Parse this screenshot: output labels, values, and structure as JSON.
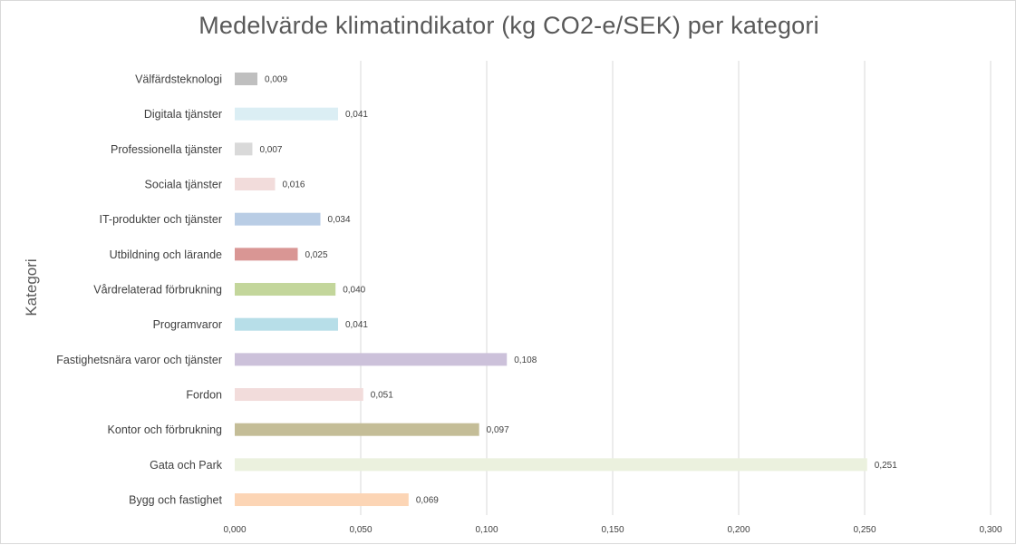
{
  "chart_data": {
    "type": "bar",
    "orientation": "horizontal",
    "title": "Medelvärde klimatindikator (kg CO2-e/SEK) per kategori",
    "ylabel": "Kategori",
    "xlabel": "",
    "xlim": [
      0,
      0.3
    ],
    "xticks": [
      0,
      0.05,
      0.1,
      0.15,
      0.2,
      0.25,
      0.3
    ],
    "xtick_labels": [
      "0,000",
      "0,050",
      "0,100",
      "0,150",
      "0,200",
      "0,250",
      "0,300"
    ],
    "grid": "vertical",
    "legend": "none",
    "categories": [
      "Välfärdsteknologi",
      "Digitala tjänster",
      "Professionella tjänster",
      "Sociala tjänster",
      "IT-produkter och tjänster",
      "Utbildning och lärande",
      "Vårdrelaterad förbrukning",
      "Programvaror",
      "Fastighetsnära varor och tjänster",
      "Fordon",
      "Kontor och förbrukning",
      "Gata och Park",
      "Bygg och fastighet"
    ],
    "values": [
      0.009,
      0.041,
      0.007,
      0.016,
      0.034,
      0.025,
      0.04,
      0.041,
      0.108,
      0.051,
      0.097,
      0.251,
      0.069
    ],
    "value_labels": [
      "0,009",
      "0,041",
      "0,007",
      "0,016",
      "0,034",
      "0,025",
      "0,040",
      "0,041",
      "0,108",
      "0,051",
      "0,097",
      "0,251",
      "0,069"
    ],
    "colors": [
      "#bfbfbf",
      "#dbeef4",
      "#d9d9d9",
      "#f2dcdb",
      "#b9cde5",
      "#d99694",
      "#c3d69b",
      "#b7dee8",
      "#ccc1da",
      "#f2dcdb",
      "#c4bd97",
      "#ebf1de",
      "#fcd5b5"
    ]
  }
}
